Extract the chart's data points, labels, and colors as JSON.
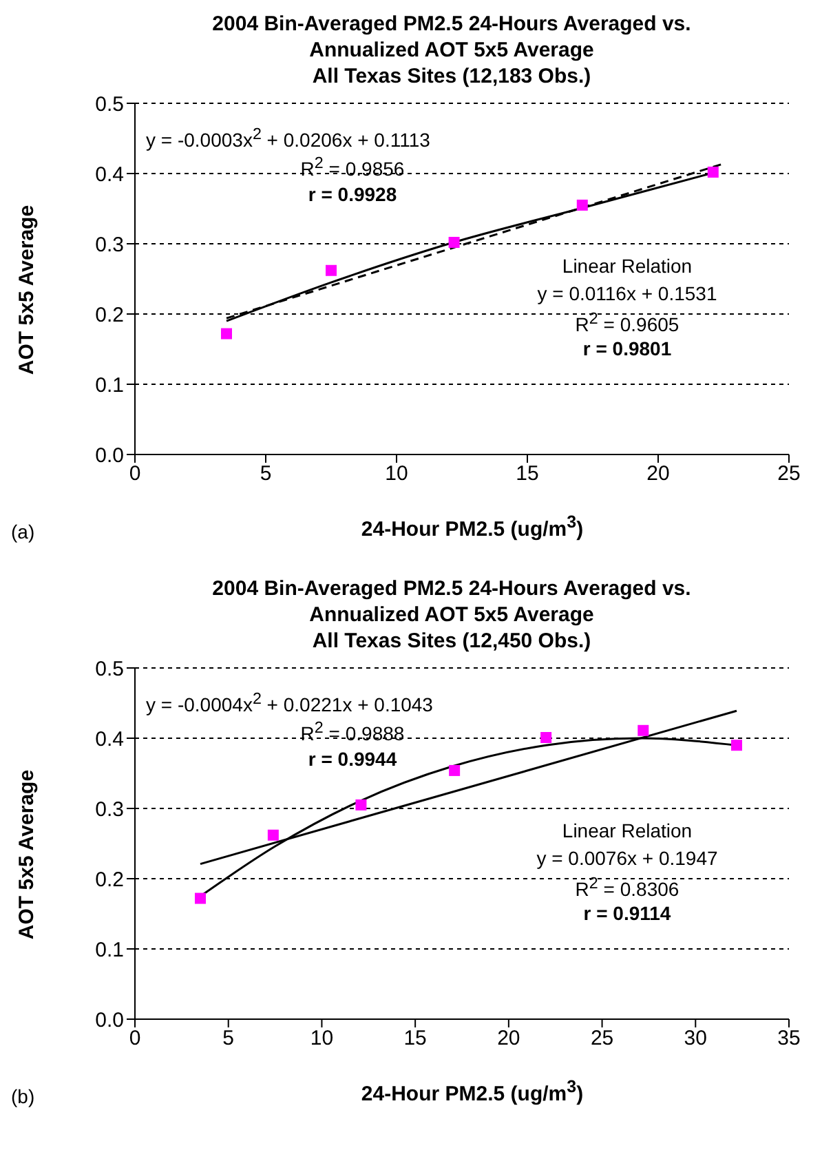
{
  "chart_data": [
    {
      "type": "scatter",
      "title": "2004 Bin-Averaged PM2.5 24-Hours Averaged vs.\nAnnualized AOT 5x5 Average\nAll Texas Sites (12,183 Obs.)",
      "xlabel": "24-Hour PM2.5 (ug/m$^{3}$)",
      "ylabel": "AOT 5x5 Average",
      "xlim": [
        0,
        25
      ],
      "xticks": [
        0,
        5,
        10,
        15,
        20,
        25
      ],
      "ylim": [
        0,
        0.5
      ],
      "yticks": [
        {
          "value": 0,
          "label": "0.0"
        },
        0.1,
        0.2,
        0.3,
        0.4,
        0.5
      ],
      "grid": "y",
      "marker": "square",
      "series": [
        {
          "color": "#ff00ff",
          "x": [
            3.5,
            7.5,
            12.2,
            17.1,
            22.1
          ],
          "values": [
            0.172,
            0.262,
            0.302,
            0.355,
            0.402
          ]
        },
        {
          "type": "line",
          "color": "#000000",
          "line_style": "solid",
          "marker": "none",
          "x": [
            3.5,
            7.5,
            12,
            17,
            22
          ],
          "values": [
            0.19,
            0.245,
            0.3,
            0.35,
            0.4
          ]
        },
        {
          "type": "line",
          "color": "#000000",
          "line_style": "dashed",
          "marker": "none",
          "x": [
            3.5,
            22.5
          ],
          "values": [
            0.194,
            0.414
          ]
        }
      ],
      "annotations": [
        "y = -0.0003x$^{2}$ + 0.0206x + 0.1113",
        "R$^{2}$ = 0.9856",
        "r = 0.9928",
        "Linear Relation",
        "y = 0.0116x + 0.1531",
        "R$^{2}$ = 0.9605",
        "r = 0.9801",
        "(a)"
      ]
    },
    {
      "type": "scatter",
      "title": "2004 Bin-Averaged PM2.5 24-Hours Averaged vs.\nAnnualized AOT 5x5 Average\nAll Texas Sites (12,450 Obs.)",
      "xlabel": "24-Hour PM2.5 (ug/m$^{3}$)",
      "ylabel": "AOT 5x5 Average",
      "xlim": [
        0,
        35
      ],
      "xticks": [
        0,
        5,
        10,
        15,
        20,
        25,
        30,
        35
      ],
      "ylim": [
        0,
        0.5
      ],
      "yticks": [
        {
          "value": 0,
          "label": "0.0"
        },
        0.1,
        0.2,
        0.3,
        0.4,
        0.5
      ],
      "grid": "y",
      "marker": "square",
      "series": [
        {
          "color": "#ff00ff",
          "x": [
            3.5,
            7.4,
            12.1,
            17.1,
            22,
            27.2,
            32.2
          ],
          "values": [
            0.172,
            0.262,
            0.305,
            0.354,
            0.401,
            0.411,
            0.39
          ]
        },
        {
          "type": "line",
          "color": "#000000",
          "line_style": "solid",
          "marker": "none",
          "x": [
            3.5,
            7.5,
            12,
            17,
            22,
            27,
            32.2
          ],
          "values": [
            0.175,
            0.246,
            0.31,
            0.36,
            0.39,
            0.4,
            0.39
          ]
        },
        {
          "type": "line",
          "color": "#000000",
          "line_style": "solid",
          "marker": "none",
          "x": [
            3.5,
            32.2
          ],
          "values": [
            0.221,
            0.439
          ]
        }
      ],
      "annotations": [
        "y = -0.0004x$^{2}$ + 0.0221x + 0.1043",
        "R$^{2}$ = 0.9888",
        "r = 0.9944",
        "Linear Relation",
        "y = 0.0076x + 0.1947",
        "R$^{2}$ = 0.8306",
        "r = 0.9114",
        "(b)"
      ]
    }
  ]
}
